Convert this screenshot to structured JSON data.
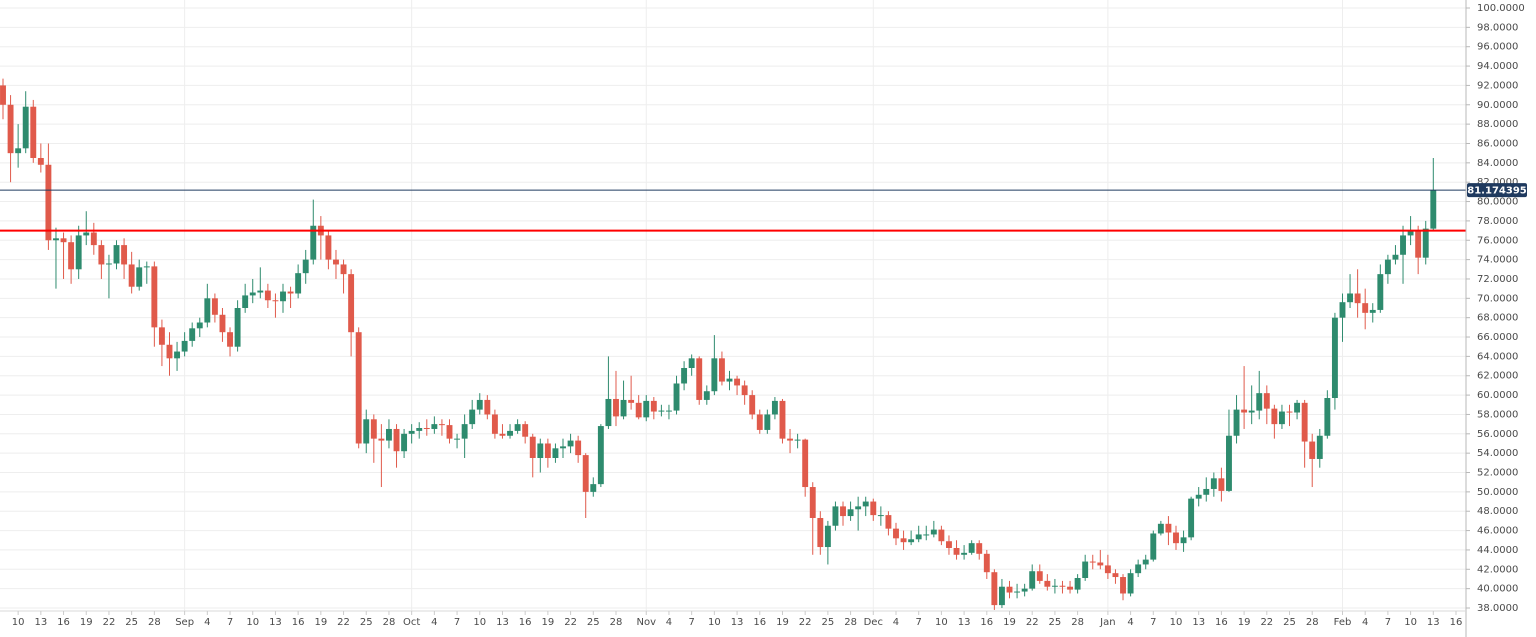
{
  "chart_data": {
    "type": "candlestick",
    "up_color": "#2e8b6e",
    "down_color": "#e05a4b",
    "grid": true,
    "ylim": [
      38,
      100
    ],
    "yticks": [
      {
        "value": 38,
        "label": "38.0000"
      },
      {
        "value": 40,
        "label": "40.0000"
      },
      {
        "value": 42,
        "label": "42.0000"
      },
      {
        "value": 44,
        "label": "44.0000"
      },
      {
        "value": 46,
        "label": "46.0000"
      },
      {
        "value": 48,
        "label": "48.0000"
      },
      {
        "value": 50,
        "label": "50.0000"
      },
      {
        "value": 52,
        "label": "52.0000"
      },
      {
        "value": 54,
        "label": "54.0000"
      },
      {
        "value": 56,
        "label": "56.0000"
      },
      {
        "value": 58,
        "label": "58.0000"
      },
      {
        "value": 60,
        "label": "60.0000"
      },
      {
        "value": 62,
        "label": "62.0000"
      },
      {
        "value": 64,
        "label": "64.0000"
      },
      {
        "value": 66,
        "label": "66.0000"
      },
      {
        "value": 68,
        "label": "68.0000"
      },
      {
        "value": 70,
        "label": "70.0000"
      },
      {
        "value": 72,
        "label": "72.0000"
      },
      {
        "value": 74,
        "label": "74.0000"
      },
      {
        "value": 76,
        "label": "76.0000"
      },
      {
        "value": 78,
        "label": "78.0000"
      },
      {
        "value": 80,
        "label": "80.0000"
      },
      {
        "value": 82,
        "label": "82.0000"
      },
      {
        "value": 84,
        "label": "84.0000"
      },
      {
        "value": 86,
        "label": "86.0000"
      },
      {
        "value": 88,
        "label": "88.0000"
      },
      {
        "value": 90,
        "label": "90.0000"
      },
      {
        "value": 92,
        "label": "92.0000"
      },
      {
        "value": 94,
        "label": "94.0000"
      },
      {
        "value": 96,
        "label": "96.0000"
      },
      {
        "value": 98,
        "label": "98.0000"
      },
      {
        "value": 100,
        "label": "100.0000"
      }
    ],
    "hline": {
      "value": 77,
      "color": "#ff0000"
    },
    "last_price_color": "#1f3a5f",
    "categories": [
      null,
      null,
      "10",
      null,
      null,
      "13",
      null,
      null,
      "16",
      null,
      null,
      "19",
      null,
      null,
      "22",
      null,
      null,
      "25",
      null,
      null,
      "28",
      null,
      null,
      null,
      "Sep",
      null,
      null,
      "4",
      null,
      null,
      "7",
      null,
      null,
      "10",
      null,
      null,
      "13",
      null,
      null,
      "16",
      null,
      null,
      "19",
      null,
      null,
      "22",
      null,
      null,
      "25",
      null,
      null,
      "28",
      null,
      null,
      "Oct",
      null,
      null,
      "4",
      null,
      null,
      "7",
      null,
      null,
      "10",
      null,
      null,
      "13",
      null,
      null,
      "16",
      null,
      null,
      "19",
      null,
      null,
      "22",
      null,
      null,
      "25",
      null,
      null,
      "28",
      null,
      null,
      null,
      "Nov",
      null,
      null,
      "4",
      null,
      null,
      "7",
      null,
      null,
      "10",
      null,
      null,
      "13",
      null,
      null,
      "16",
      null,
      null,
      "19",
      null,
      null,
      "22",
      null,
      null,
      "25",
      null,
      null,
      "28",
      null,
      null,
      "Dec",
      null,
      null,
      "4",
      null,
      null,
      "7",
      null,
      null,
      "10",
      null,
      null,
      "13",
      null,
      null,
      "16",
      null,
      null,
      "19",
      null,
      null,
      "22",
      null,
      null,
      "25",
      null,
      null,
      "28",
      null,
      null,
      null,
      "Jan",
      null,
      null,
      "4",
      null,
      null,
      "7",
      null,
      null,
      "10",
      null,
      null,
      "13",
      null,
      null,
      "16",
      null,
      null,
      "19",
      null,
      null,
      "22",
      null,
      null,
      "25",
      null,
      null,
      "28",
      null,
      null,
      null,
      "Feb",
      null,
      null,
      "4",
      null,
      null,
      "7",
      null,
      null,
      "10",
      null,
      null,
      "13",
      null,
      null,
      "16"
    ],
    "ohlc": [
      [
        92,
        92.7,
        88.5,
        90
      ],
      [
        90,
        91,
        82,
        85
      ],
      [
        85,
        88,
        83.5,
        85.5
      ],
      [
        85.5,
        91.4,
        85,
        89.8
      ],
      [
        89.8,
        90.5,
        84,
        84.5
      ],
      [
        84.5,
        86,
        83,
        83.8
      ],
      [
        83.8,
        86,
        75,
        76
      ],
      [
        76,
        77.3,
        71,
        76.2
      ],
      [
        76.2,
        76.8,
        72,
        75.8
      ],
      [
        75.8,
        76.5,
        71.5,
        73
      ],
      [
        73,
        77.5,
        72,
        76.5
      ],
      [
        76.5,
        79,
        75.5,
        76.8
      ],
      [
        76.8,
        77.8,
        74.5,
        75.5
      ],
      [
        75.5,
        76,
        72,
        73.5
      ],
      [
        73.5,
        74.5,
        70,
        73.6
      ],
      [
        73.6,
        76,
        73,
        75.5
      ],
      [
        75.5,
        76.2,
        72,
        73.5
      ],
      [
        73.5,
        74.8,
        70.5,
        71.2
      ],
      [
        71.2,
        74,
        70.8,
        73.2
      ],
      [
        73.2,
        73.8,
        71.5,
        73.3
      ],
      [
        73.3,
        73.8,
        65,
        67
      ],
      [
        67,
        67.8,
        63,
        65.2
      ],
      [
        65.2,
        66.5,
        62,
        63.8
      ],
      [
        63.8,
        65.5,
        62.5,
        64.5
      ],
      [
        64.5,
        66.5,
        64,
        65.6
      ],
      [
        65.6,
        67.5,
        65,
        66.9
      ],
      [
        66.9,
        68,
        66,
        67.5
      ],
      [
        67.5,
        71.5,
        67,
        70
      ],
      [
        70,
        70.5,
        67.5,
        68.3
      ],
      [
        68.3,
        69,
        65.5,
        66.5
      ],
      [
        66.5,
        67,
        64,
        65
      ],
      [
        65,
        69.8,
        64.5,
        69
      ],
      [
        69,
        71.5,
        68.5,
        70.3
      ],
      [
        70.3,
        72,
        69.5,
        70.6
      ],
      [
        70.6,
        73.2,
        70,
        70.8
      ],
      [
        70.8,
        71.5,
        69,
        69.8
      ],
      [
        69.8,
        70.5,
        68,
        69.7
      ],
      [
        69.7,
        71.5,
        68.5,
        70.7
      ],
      [
        70.7,
        71.2,
        69,
        70.5
      ],
      [
        70.5,
        73.5,
        70,
        72.6
      ],
      [
        72.6,
        75,
        71.5,
        74
      ],
      [
        74,
        80.2,
        73.5,
        77.5
      ],
      [
        77.5,
        78.5,
        74,
        76.5
      ],
      [
        76.5,
        77,
        73,
        74
      ],
      [
        74,
        75,
        72,
        73.5
      ],
      [
        73.5,
        74,
        70.5,
        72.5
      ],
      [
        72.5,
        73,
        64,
        66.5
      ],
      [
        66.5,
        67,
        54.5,
        55
      ],
      [
        55,
        58.5,
        54,
        57.5
      ],
      [
        57.5,
        58,
        53,
        55.5
      ],
      [
        55.5,
        57,
        50.5,
        55.3
      ],
      [
        55.3,
        57.5,
        54.5,
        56.5
      ],
      [
        56.5,
        57,
        52.5,
        54.2
      ],
      [
        54.2,
        56.5,
        53.5,
        56
      ],
      [
        56,
        57,
        55,
        56.3
      ],
      [
        56.3,
        57.2,
        55.5,
        56.6
      ],
      [
        56.6,
        57.5,
        55.8,
        56.5
      ],
      [
        56.5,
        57.8,
        56,
        57
      ],
      [
        57,
        57.5,
        55.8,
        56.9
      ],
      [
        56.9,
        57.5,
        55,
        55.5
      ],
      [
        55.5,
        56,
        54.5,
        55.5
      ],
      [
        55.5,
        58,
        53.5,
        57
      ],
      [
        57,
        59.5,
        56.5,
        58.5
      ],
      [
        58.5,
        60.2,
        58,
        59.5
      ],
      [
        59.5,
        60,
        57.5,
        58
      ],
      [
        58,
        58.5,
        55.5,
        56
      ],
      [
        56,
        57,
        55.5,
        55.8
      ],
      [
        55.8,
        57,
        55.5,
        56.3
      ],
      [
        56.3,
        57.5,
        56,
        57
      ],
      [
        57,
        57.3,
        55,
        55.7
      ],
      [
        55.7,
        56,
        51.5,
        53.5
      ],
      [
        53.5,
        55.5,
        52,
        55
      ],
      [
        55,
        55.5,
        52.5,
        53.5
      ],
      [
        53.5,
        55,
        53,
        54.5
      ],
      [
        54.5,
        55.5,
        53.5,
        54.7
      ],
      [
        54.7,
        56,
        54,
        55.3
      ],
      [
        55.3,
        55.8,
        53,
        53.8
      ],
      [
        53.8,
        54,
        47.3,
        50
      ],
      [
        50,
        51.5,
        49.5,
        50.8
      ],
      [
        50.8,
        57,
        50.5,
        56.8
      ],
      [
        56.8,
        64,
        56.5,
        59.6
      ],
      [
        59.6,
        62.5,
        56.8,
        57.8
      ],
      [
        57.8,
        61.5,
        57.5,
        59.5
      ],
      [
        59.5,
        62,
        58.5,
        59.2
      ],
      [
        59.2,
        60,
        57.5,
        57.7
      ],
      [
        57.7,
        60,
        57.3,
        59.4
      ],
      [
        59.4,
        59.8,
        57.5,
        58.3
      ],
      [
        58.3,
        59,
        57.8,
        58.4
      ],
      [
        58.4,
        59,
        57.5,
        58.4
      ],
      [
        58.4,
        62,
        58,
        61.2
      ],
      [
        61.2,
        63.5,
        60.5,
        62.8
      ],
      [
        62.8,
        64.2,
        62,
        63.8
      ],
      [
        63.8,
        64,
        59,
        59.5
      ],
      [
        59.5,
        61,
        59,
        60.4
      ],
      [
        60.4,
        66.2,
        60,
        63.8
      ],
      [
        63.8,
        64.5,
        61,
        61.4
      ],
      [
        61.4,
        62.5,
        60.5,
        61.7
      ],
      [
        61.7,
        62,
        60,
        61
      ],
      [
        61,
        61.5,
        59,
        60
      ],
      [
        60,
        60.5,
        57.5,
        58
      ],
      [
        58,
        58.5,
        56,
        56.4
      ],
      [
        56.4,
        58.5,
        56,
        58
      ],
      [
        58,
        59.8,
        57.5,
        59.4
      ],
      [
        59.4,
        59.6,
        55,
        55.5
      ],
      [
        55.5,
        56.5,
        54,
        55.3
      ],
      [
        55.3,
        56,
        54.5,
        55.4
      ],
      [
        55.4,
        55.5,
        49.5,
        50.5
      ],
      [
        50.5,
        51,
        43.5,
        47.3
      ],
      [
        47.3,
        48,
        43.5,
        44.3
      ],
      [
        44.3,
        47,
        42.5,
        46.5
      ],
      [
        46.5,
        49,
        46,
        48.5
      ],
      [
        48.5,
        49,
        46.5,
        47.5
      ],
      [
        47.5,
        49,
        47,
        48.2
      ],
      [
        48.2,
        49.5,
        46,
        48.5
      ],
      [
        48.5,
        49.5,
        47.5,
        49
      ],
      [
        49,
        49.3,
        47,
        47.6
      ],
      [
        47.6,
        48.5,
        46.5,
        47.6
      ],
      [
        47.6,
        48,
        45.5,
        46.2
      ],
      [
        46.2,
        46.8,
        44.5,
        45.2
      ],
      [
        45.2,
        46,
        44,
        44.8
      ],
      [
        44.8,
        46,
        44.5,
        45.1
      ],
      [
        45.1,
        46.5,
        44.8,
        45.6
      ],
      [
        45.6,
        46.5,
        45,
        45.6
      ],
      [
        45.6,
        47,
        45.3,
        46.1
      ],
      [
        46.1,
        46.5,
        44.5,
        44.9
      ],
      [
        44.9,
        45.5,
        43.5,
        44.2
      ],
      [
        44.2,
        45,
        43,
        43.5
      ],
      [
        43.5,
        44.5,
        43,
        43.7
      ],
      [
        43.7,
        45,
        43.5,
        44.7
      ],
      [
        44.7,
        45,
        43,
        43.6
      ],
      [
        43.6,
        44,
        41,
        41.7
      ],
      [
        41.7,
        42,
        37.8,
        38.3
      ],
      [
        38.3,
        41,
        38,
        40.2
      ],
      [
        40.2,
        40.8,
        39,
        39.6
      ],
      [
        39.6,
        40.5,
        39,
        39.7
      ],
      [
        39.7,
        40.5,
        39.2,
        40
      ],
      [
        40,
        42.5,
        39.8,
        41.8
      ],
      [
        41.8,
        42.5,
        40.5,
        40.8
      ],
      [
        40.8,
        41.5,
        39.8,
        40.2
      ],
      [
        40.2,
        41,
        39.5,
        40.3
      ],
      [
        40.3,
        40.8,
        39.5,
        40.2
      ],
      [
        40.2,
        40.8,
        39.5,
        39.9
      ],
      [
        39.9,
        41.5,
        39.5,
        41.1
      ],
      [
        41.1,
        43.5,
        40.8,
        42.8
      ],
      [
        42.8,
        43.5,
        42,
        42.7
      ],
      [
        42.7,
        44,
        42,
        42.4
      ],
      [
        42.4,
        43.5,
        41,
        41.6
      ],
      [
        41.6,
        42,
        40.5,
        41.2
      ],
      [
        41.2,
        41.5,
        38.8,
        39.5
      ],
      [
        39.5,
        42,
        39.2,
        41.6
      ],
      [
        41.6,
        43,
        41.2,
        42.5
      ],
      [
        42.5,
        43.5,
        42,
        43
      ],
      [
        43,
        46,
        42.8,
        45.7
      ],
      [
        45.7,
        47,
        45.5,
        46.7
      ],
      [
        46.7,
        47.5,
        44.5,
        45.8
      ],
      [
        45.8,
        46.5,
        44,
        44.7
      ],
      [
        44.7,
        46,
        43.8,
        45.3
      ],
      [
        45.3,
        49.5,
        45,
        49.3
      ],
      [
        49.3,
        50.5,
        48.5,
        49.7
      ],
      [
        49.7,
        51.5,
        49,
        50.3
      ],
      [
        50.3,
        52,
        49.5,
        51.4
      ],
      [
        51.4,
        52.5,
        49,
        50.1
      ],
      [
        50.1,
        58.5,
        50,
        55.8
      ],
      [
        55.8,
        60,
        55,
        58.5
      ],
      [
        58.5,
        63,
        56.5,
        58.2
      ],
      [
        58.2,
        61,
        57,
        58.4
      ],
      [
        58.4,
        62.5,
        57.5,
        60.2
      ],
      [
        60.2,
        61,
        57,
        58.6
      ],
      [
        58.6,
        59,
        55.5,
        57
      ],
      [
        57,
        59,
        56.5,
        58.3
      ],
      [
        58.3,
        59,
        56.8,
        58.2
      ],
      [
        58.2,
        59.5,
        57.5,
        59.2
      ],
      [
        59.2,
        59.5,
        52.5,
        55.2
      ],
      [
        55.2,
        56,
        50.5,
        53.4
      ],
      [
        53.4,
        56.5,
        52.5,
        55.8
      ],
      [
        55.8,
        60.5,
        55.5,
        59.7
      ],
      [
        59.7,
        68.5,
        58.5,
        68
      ],
      [
        68,
        70.5,
        65.5,
        69.6
      ],
      [
        69.6,
        72.5,
        69,
        70.5
      ],
      [
        70.5,
        73,
        68,
        69.5
      ],
      [
        69.5,
        71,
        66.8,
        68.5
      ],
      [
        68.5,
        69.5,
        67.5,
        68.8
      ],
      [
        68.8,
        73.5,
        68.5,
        72.5
      ],
      [
        72.5,
        74.5,
        71.5,
        74
      ],
      [
        74,
        75.5,
        73.5,
        74.5
      ],
      [
        74.5,
        77.5,
        71.5,
        76.5
      ],
      [
        76.5,
        78.5,
        75.5,
        77
      ],
      [
        77,
        77.5,
        72.5,
        74.2
      ],
      [
        74.2,
        78,
        73.5,
        77.2
      ],
      [
        77.2,
        84.5,
        77,
        81.174395
      ],
      null,
      null,
      null
    ]
  }
}
